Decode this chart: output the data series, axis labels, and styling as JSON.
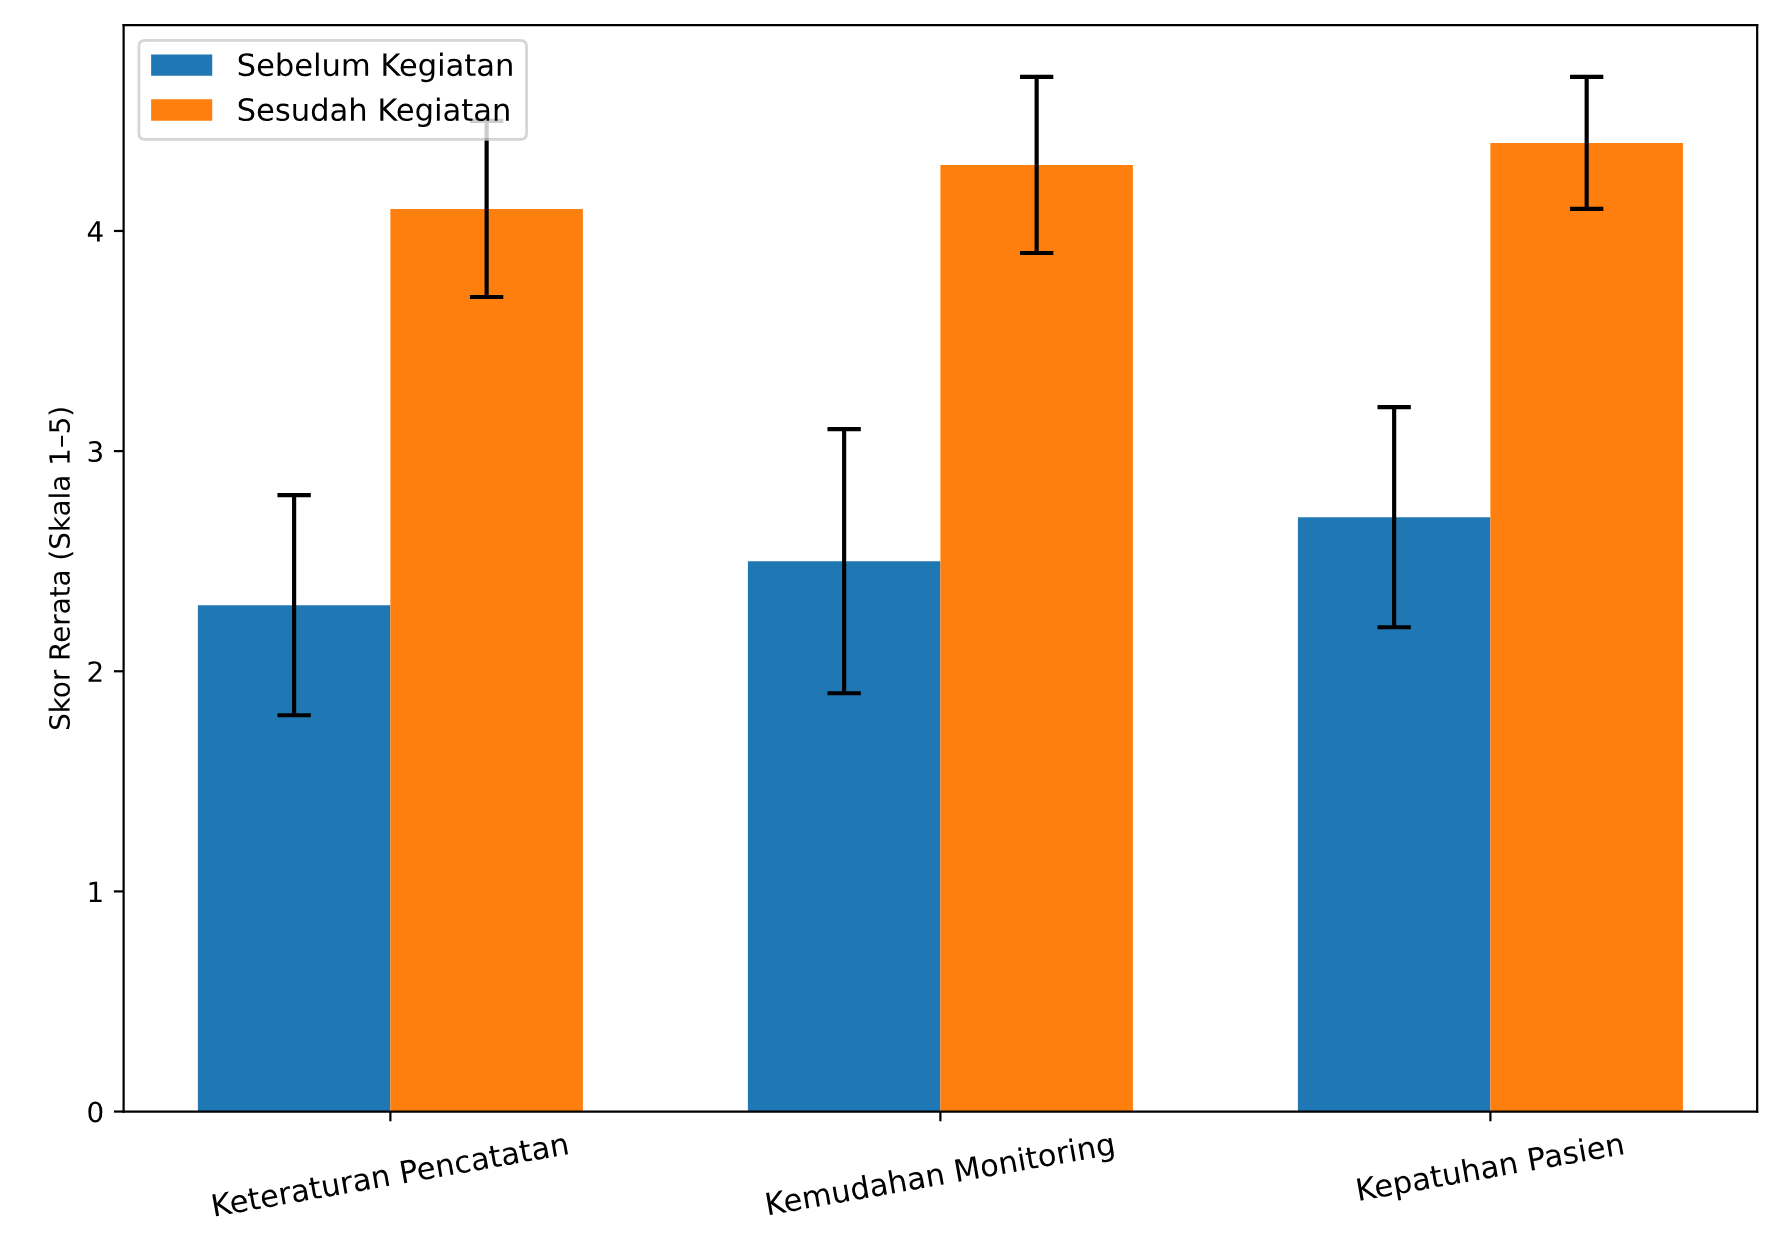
{
  "chart_data": {
    "type": "bar",
    "ylabel": "Skor Rerata (Skala 1–5)",
    "categories": [
      "Keteraturan Pencatatan",
      "Kemudahan Monitoring",
      "Kepatuhan Pasien"
    ],
    "series": [
      {
        "name": "Sebelum Kegiatan",
        "color": "#1f77b4",
        "values": [
          2.3,
          2.5,
          2.7
        ],
        "errors": [
          0.5,
          0.6,
          0.5
        ]
      },
      {
        "name": "Sesudah Kegiatan",
        "color": "#ff7f0e",
        "values": [
          4.1,
          4.3,
          4.4
        ],
        "errors": [
          0.4,
          0.4,
          0.3
        ]
      }
    ],
    "ylim": [
      0,
      4.935
    ],
    "yticks": [
      0,
      1,
      2,
      3,
      4
    ],
    "grid": false,
    "legend": "top left"
  }
}
